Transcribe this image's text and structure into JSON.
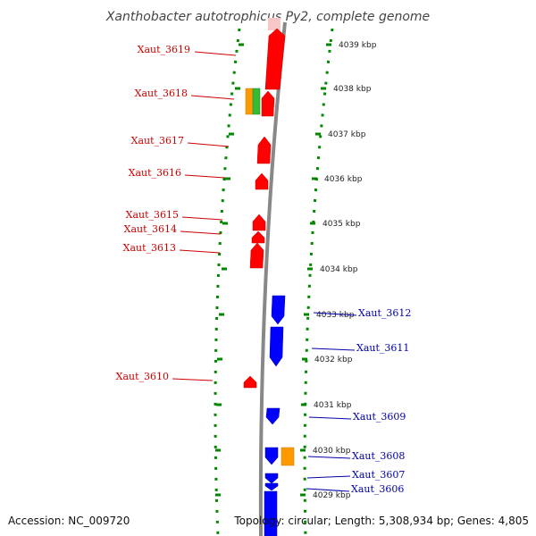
{
  "title": "Xanthobacter autotrophicus Py2, complete genome",
  "accession": "Accession: NC_009720",
  "topology": "Topology: circular; Length: 5,308,934 bp; Genes: 4,805",
  "colors": {
    "forward_gene": "#ff0000",
    "reverse_gene": "#0000ff",
    "orange_feature": "#ff9900",
    "green_feature": "#33bb33",
    "backbone": "#888888",
    "tick": "#008800",
    "forward_label": "#cc0000",
    "reverse_label": "#0000aa"
  },
  "kbp_ticks": [
    {
      "label": "4039 kbp",
      "kbp": 4039
    },
    {
      "label": "4038 kbp",
      "kbp": 4038
    },
    {
      "label": "4037 kbp",
      "kbp": 4037
    },
    {
      "label": "4036 kbp",
      "kbp": 4036
    },
    {
      "label": "4035 kbp",
      "kbp": 4035
    },
    {
      "label": "4034 kbp",
      "kbp": 4034
    },
    {
      "label": "4033 kbp",
      "kbp": 4033
    },
    {
      "label": "4032 kbp",
      "kbp": 4032
    },
    {
      "label": "4031 kbp",
      "kbp": 4031
    },
    {
      "label": "4030 kbp",
      "kbp": 4030
    },
    {
      "label": "4029 kbp",
      "kbp": 4029
    }
  ],
  "genes": [
    {
      "label": "Xaut_3619",
      "strand": "forward"
    },
    {
      "label": "Xaut_3618",
      "strand": "forward"
    },
    {
      "label": "Xaut_3617",
      "strand": "forward"
    },
    {
      "label": "Xaut_3616",
      "strand": "forward"
    },
    {
      "label": "Xaut_3615",
      "strand": "forward"
    },
    {
      "label": "Xaut_3614",
      "strand": "forward"
    },
    {
      "label": "Xaut_3613",
      "strand": "forward"
    },
    {
      "label": "Xaut_3612",
      "strand": "reverse"
    },
    {
      "label": "Xaut_3611",
      "strand": "reverse"
    },
    {
      "label": "Xaut_3610",
      "strand": "forward"
    },
    {
      "label": "Xaut_3609",
      "strand": "reverse"
    },
    {
      "label": "Xaut_3608",
      "strand": "reverse"
    },
    {
      "label": "Xaut_3607",
      "strand": "reverse"
    },
    {
      "label": "Xaut_3606",
      "strand": "reverse"
    }
  ]
}
